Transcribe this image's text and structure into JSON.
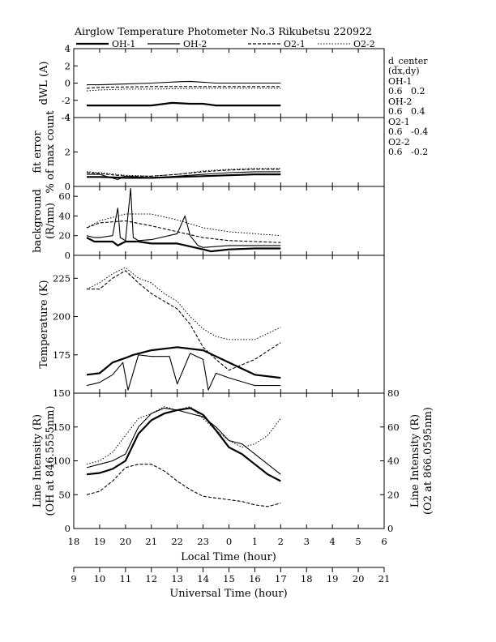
{
  "chart_data": {
    "type": "line",
    "title": "Airglow Temperature Photometer No.3  Rikubetsu    220922",
    "legend": [
      {
        "label": "OH-1",
        "style": "thick-solid"
      },
      {
        "label": "OH-2",
        "style": "solid"
      },
      {
        "label": "O2-1",
        "style": "dashed"
      },
      {
        "label": "O2-2",
        "style": "dotted"
      }
    ],
    "legend_position": "top",
    "grid": false,
    "x_axes": {
      "local": {
        "label": "Local Time (hour)",
        "ticks": [
          "18",
          "19",
          "20",
          "21",
          "22",
          "23",
          "0",
          "1",
          "2",
          "3",
          "4",
          "5",
          "6"
        ],
        "range_hours_from_18LT": [
          0,
          12
        ]
      },
      "universal": {
        "label": "Universal Time (hour)",
        "ticks": [
          "9",
          "10",
          "11",
          "12",
          "13",
          "14",
          "15",
          "16",
          "17",
          "18",
          "19",
          "20",
          "21"
        ],
        "range_ut": [
          9,
          21
        ]
      }
    },
    "side_info": {
      "header": "d_center",
      "subheader": "(dx,dy)",
      "entries": [
        {
          "name": "OH-1",
          "values": "0.6   0.2"
        },
        {
          "name": "OH-2",
          "values": "0.6   0.4"
        },
        {
          "name": "O2-1",
          "values": "0.6   -0.4"
        },
        {
          "name": "O2-2",
          "values": "0.6   -0.2"
        }
      ]
    },
    "panels": [
      {
        "name": "dwl",
        "ylabel": "dWL (A)",
        "ylim": [
          -4,
          4
        ],
        "yticks": [
          -4,
          -2,
          0,
          2,
          4
        ],
        "ytick_labels": [
          "-4",
          "-2",
          "0",
          "2",
          "4"
        ],
        "series": [
          {
            "name": "OH-1",
            "style": "thick-solid",
            "x": [
              0.5,
              1,
              2,
              3,
              3.8,
              4.5,
              5,
              5.5,
              6,
              7,
              8
            ],
            "y": [
              -2.6,
              -2.6,
              -2.6,
              -2.6,
              -2.3,
              -2.4,
              -2.4,
              -2.6,
              -2.6,
              -2.6,
              -2.6
            ]
          },
          {
            "name": "OH-2",
            "style": "solid",
            "x": [
              0.5,
              1,
              2,
              3,
              4,
              4.5,
              5,
              5.5,
              6,
              7,
              8
            ],
            "y": [
              -0.2,
              -0.2,
              -0.1,
              0,
              0.15,
              0.2,
              0.1,
              0,
              0,
              0,
              0
            ]
          },
          {
            "name": "O2-1",
            "style": "dashed",
            "x": [
              0.5,
              1,
              2,
              3,
              4,
              5,
              6,
              7,
              8
            ],
            "y": [
              -0.6,
              -0.5,
              -0.45,
              -0.4,
              -0.4,
              -0.4,
              -0.4,
              -0.4,
              -0.4
            ]
          },
          {
            "name": "O2-2",
            "style": "dotted",
            "x": [
              0.5,
              1,
              2,
              3,
              4,
              5,
              6,
              7,
              8
            ],
            "y": [
              -0.9,
              -0.8,
              -0.7,
              -0.7,
              -0.65,
              -0.6,
              -0.6,
              -0.6,
              -0.6
            ]
          }
        ]
      },
      {
        "name": "fit_error",
        "ylabel": "fit error",
        "ylabel2": "% of max count",
        "ylim": [
          0,
          4
        ],
        "yticks": [
          0,
          2,
          4
        ],
        "ytick_labels": [
          "0",
          "2",
          "4"
        ],
        "series": [
          {
            "name": "OH-1",
            "style": "thick-solid",
            "x": [
              0.5,
              1,
              2,
              3,
              4,
              5,
              6,
              7,
              8
            ],
            "y": [
              0.55,
              0.55,
              0.5,
              0.5,
              0.55,
              0.6,
              0.65,
              0.7,
              0.7
            ]
          },
          {
            "name": "OH-2",
            "style": "solid",
            "x": [
              0.5,
              1,
              1.7,
              2,
              3,
              4,
              5,
              6,
              7,
              8
            ],
            "y": [
              0.7,
              0.7,
              0.4,
              0.6,
              0.5,
              0.6,
              0.7,
              0.8,
              0.85,
              0.85
            ]
          },
          {
            "name": "O2-1",
            "style": "dashed",
            "x": [
              0.5,
              1,
              2,
              3,
              4,
              5,
              6,
              7,
              8
            ],
            "y": [
              0.8,
              0.75,
              0.6,
              0.6,
              0.7,
              0.85,
              0.95,
              1.0,
              1.0
            ]
          },
          {
            "name": "O2-2",
            "style": "dotted",
            "x": [
              0.5,
              1,
              2,
              3,
              4,
              5,
              6,
              7,
              8
            ],
            "y": [
              0.85,
              0.8,
              0.65,
              0.6,
              0.7,
              0.9,
              1.0,
              1.05,
              1.05
            ]
          }
        ]
      },
      {
        "name": "background",
        "ylabel": "background",
        "ylabel2": "(R/nm)",
        "ylim": [
          0,
          70
        ],
        "yticks": [
          0,
          20,
          40,
          60
        ],
        "ytick_labels": [
          "0",
          "20",
          "40",
          "60"
        ],
        "series": [
          {
            "name": "OH-1",
            "style": "thick-solid",
            "x": [
              0.5,
              0.8,
              1,
              1.5,
              1.7,
              2,
              2.5,
              3,
              4,
              5,
              5.3,
              6,
              7,
              8
            ],
            "y": [
              18,
              14,
              14,
              14,
              10,
              14,
              14,
              12,
              12,
              6,
              4,
              6,
              7,
              7
            ]
          },
          {
            "name": "OH-2",
            "style": "solid",
            "x": [
              0.5,
              0.8,
              1,
              1.5,
              1.7,
              1.8,
              2,
              2.2,
              2.3,
              2.5,
              3,
              4,
              4.3,
              4.5,
              4.8,
              5,
              6,
              7,
              8
            ],
            "y": [
              20,
              18,
              18,
              20,
              48,
              18,
              15,
              68,
              18,
              15,
              16,
              22,
              40,
              20,
              10,
              8,
              10,
              10,
              10
            ]
          },
          {
            "name": "O2-1",
            "style": "dashed",
            "x": [
              0.5,
              1,
              2,
              3,
              4,
              5,
              6,
              7,
              8
            ],
            "y": [
              28,
              33,
              35,
              30,
              24,
              18,
              15,
              14,
              13
            ]
          },
          {
            "name": "O2-2",
            "style": "dotted",
            "x": [
              0.5,
              1,
              2,
              3,
              4,
              5,
              6,
              7,
              8
            ],
            "y": [
              28,
              35,
              42,
              42,
              36,
              28,
              24,
              22,
              20
            ]
          }
        ]
      },
      {
        "name": "temperature",
        "ylabel": "Temperature (K)",
        "ylim": [
          150,
          240
        ],
        "yticks": [
          150,
          175,
          200,
          225
        ],
        "ytick_labels": [
          "150",
          "175",
          "200",
          "225"
        ],
        "series": [
          {
            "name": "OH-1",
            "style": "thick-solid",
            "x": [
              0.5,
              1,
              1.5,
              2,
              2.3,
              3,
              4,
              5,
              6,
              7,
              8
            ],
            "y": [
              162,
              163,
              170,
              173,
              175,
              178,
              180,
              178,
              170,
              162,
              160
            ]
          },
          {
            "name": "OH-2",
            "style": "solid",
            "x": [
              0.5,
              1,
              1.5,
              1.9,
              2.1,
              2.5,
              3,
              3.7,
              4,
              4.5,
              5,
              5.2,
              5.5,
              6,
              7,
              8
            ],
            "y": [
              155,
              157,
              162,
              170,
              152,
              175,
              174,
              174,
              156,
              176,
              172,
              152,
              163,
              160,
              155,
              155
            ]
          },
          {
            "name": "O2-1",
            "style": "dashed",
            "x": [
              0.5,
              1,
              1.5,
              2,
              2.5,
              3,
              3.5,
              4,
              4.5,
              5,
              5.5,
              6,
              7,
              8
            ],
            "y": [
              218,
              218,
              225,
              230,
              222,
              215,
              210,
              205,
              195,
              180,
              172,
              165,
              172,
              183
            ]
          },
          {
            "name": "O2-2",
            "style": "dotted",
            "x": [
              0.5,
              1,
              1.5,
              2,
              2.5,
              3,
              3.5,
              4,
              4.5,
              5,
              5.5,
              6,
              7,
              8
            ],
            "y": [
              218,
              222,
              228,
              232,
              225,
              222,
              215,
              210,
              200,
              192,
              187,
              185,
              185,
              193
            ]
          }
        ]
      },
      {
        "name": "line_intensity",
        "ylabel": "Line Intensity (R)",
        "ylabel2": "(OH at 846.5555nm)",
        "ylabel_right": "Line Intensity (R)",
        "ylabel_right2": "(O2 at 866.0595nm)",
        "ylim": [
          0,
          200
        ],
        "yticks": [
          0,
          50,
          100,
          150
        ],
        "ytick_labels": [
          "0",
          "50",
          "100",
          "150"
        ],
        "ylim_right": [
          0,
          80
        ],
        "yticks_right": [
          0,
          20,
          40,
          60,
          80
        ],
        "ytick_labels_right": [
          "0",
          "20",
          "40",
          "60",
          "80"
        ],
        "series": [
          {
            "name": "OH-1",
            "style": "thick-solid",
            "axis": "left",
            "x": [
              0.5,
              1,
              1.5,
              2,
              2.5,
              3,
              3.5,
              4,
              4.5,
              5,
              5.5,
              6,
              6.5,
              7,
              7.5,
              8
            ],
            "y": [
              80,
              82,
              88,
              100,
              140,
              160,
              170,
              175,
              178,
              168,
              145,
              120,
              110,
              95,
              80,
              70
            ]
          },
          {
            "name": "OH-2",
            "style": "solid",
            "axis": "left",
            "x": [
              0.5,
              1,
              1.5,
              2,
              2.5,
              3,
              3.5,
              4,
              4.5,
              5,
              5.5,
              6,
              6.5,
              7,
              7.5,
              8
            ],
            "y": [
              90,
              95,
              100,
              110,
              150,
              170,
              178,
              175,
              170,
              165,
              150,
              130,
              125,
              110,
              95,
              80
            ]
          },
          {
            "name": "O2-1",
            "style": "dashed",
            "axis": "right",
            "x": [
              0.5,
              1,
              1.5,
              2,
              2.5,
              3,
              3.5,
              4,
              4.5,
              5,
              5.5,
              6,
              6.5,
              7,
              7.5,
              8
            ],
            "y": [
              20,
              22,
              28,
              36,
              38,
              38,
              34,
              28,
              23,
              19,
              18,
              17,
              16,
              14,
              13,
              15
            ]
          },
          {
            "name": "O2-2",
            "style": "dotted",
            "axis": "right",
            "x": [
              0.5,
              1,
              1.5,
              2,
              2.5,
              3,
              3.5,
              4,
              4.5,
              5,
              5.5,
              6,
              6.5,
              7,
              7.5,
              8
            ],
            "y": [
              38,
              40,
              45,
              55,
              65,
              68,
              72,
              70,
              72,
              65,
              58,
              52,
              48,
              50,
              55,
              65
            ]
          }
        ]
      }
    ]
  }
}
